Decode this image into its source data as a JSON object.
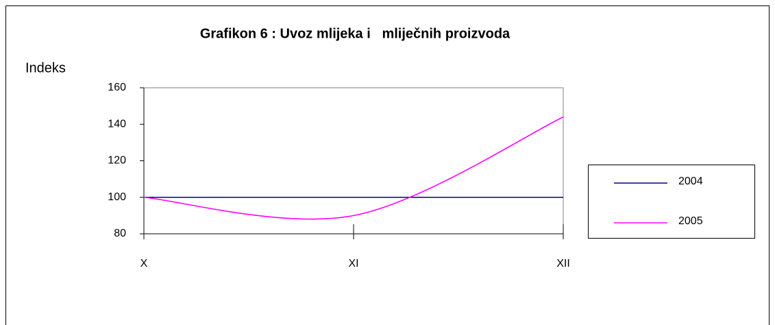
{
  "chart_data": {
    "type": "line",
    "title": "Grafikon 6 : Uvoz mlijeka i   mliječnih proizvoda",
    "y_label": "Indeks",
    "categories": [
      "X",
      "XI",
      "XII"
    ],
    "series": [
      {
        "name": "2004",
        "color": "#000080",
        "values": [
          100,
          100,
          100
        ]
      },
      {
        "name": "2005",
        "color": "#ff00ff",
        "values": [
          100,
          90,
          144
        ]
      }
    ],
    "ylim": [
      80,
      160
    ],
    "yticks": [
      80,
      100,
      120,
      140,
      160
    ],
    "smooth": true,
    "legend": "right"
  }
}
